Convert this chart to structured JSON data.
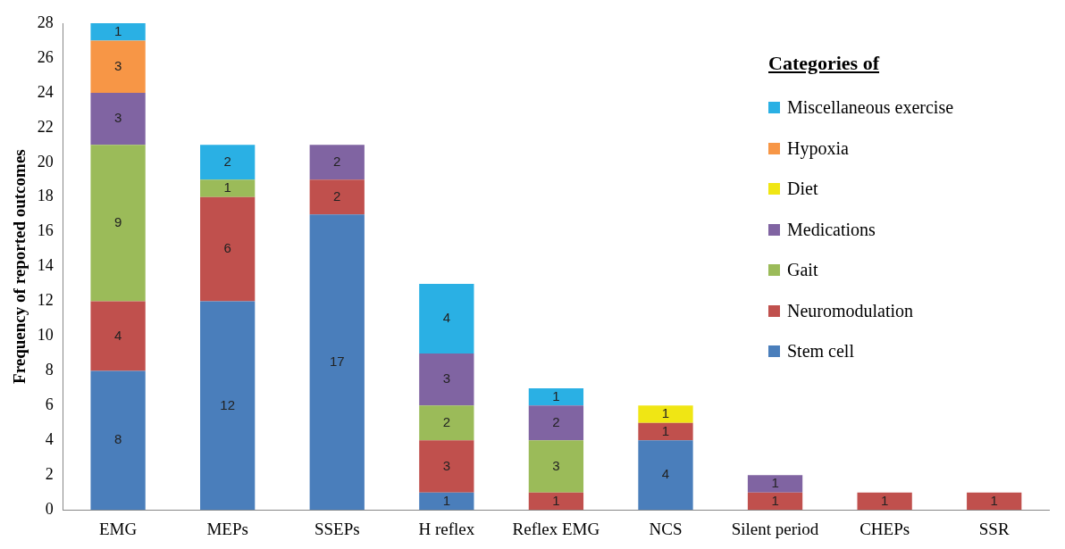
{
  "chart_data": {
    "type": "bar",
    "stacked": true,
    "ylabel": "Frequency of reported outcomes",
    "legend_title": "Categories of",
    "legend": "top right",
    "grid": false,
    "data_labels": true,
    "categories": [
      "EMG",
      "MEPs",
      "SSEPs",
      "H reflex",
      "Reflex EMG",
      "NCS",
      "Silent period",
      "CHEPs",
      "SSR"
    ],
    "ylim": [
      0,
      28
    ],
    "yticks": [
      0,
      2,
      4,
      6,
      8,
      10,
      12,
      14,
      16,
      18,
      20,
      22,
      24,
      26,
      28
    ],
    "series": [
      {
        "name": "Stem cell",
        "color": "#4a7ebb",
        "values": [
          8,
          12,
          17,
          1,
          null,
          4,
          null,
          null,
          null
        ]
      },
      {
        "name": "Neuromodulation",
        "color": "#c0504d",
        "values": [
          4,
          6,
          2,
          3,
          1,
          1,
          1,
          1,
          1
        ]
      },
      {
        "name": "Gait",
        "color": "#9bbb59",
        "values": [
          9,
          1,
          null,
          2,
          3,
          null,
          null,
          null,
          null
        ]
      },
      {
        "name": "Medications",
        "color": "#8064a2",
        "values": [
          3,
          null,
          2,
          3,
          2,
          null,
          1,
          null,
          null
        ]
      },
      {
        "name": "Diet",
        "color": "#f0e614",
        "values": [
          null,
          null,
          null,
          null,
          null,
          1,
          null,
          null,
          null
        ]
      },
      {
        "name": "Hypoxia",
        "color": "#f79646",
        "values": [
          3,
          null,
          null,
          null,
          null,
          null,
          null,
          null,
          null
        ]
      },
      {
        "name": "Miscellaneous exercise",
        "color": "#2ab0e4",
        "values": [
          1,
          2,
          null,
          4,
          1,
          null,
          null,
          null,
          null
        ]
      }
    ]
  }
}
